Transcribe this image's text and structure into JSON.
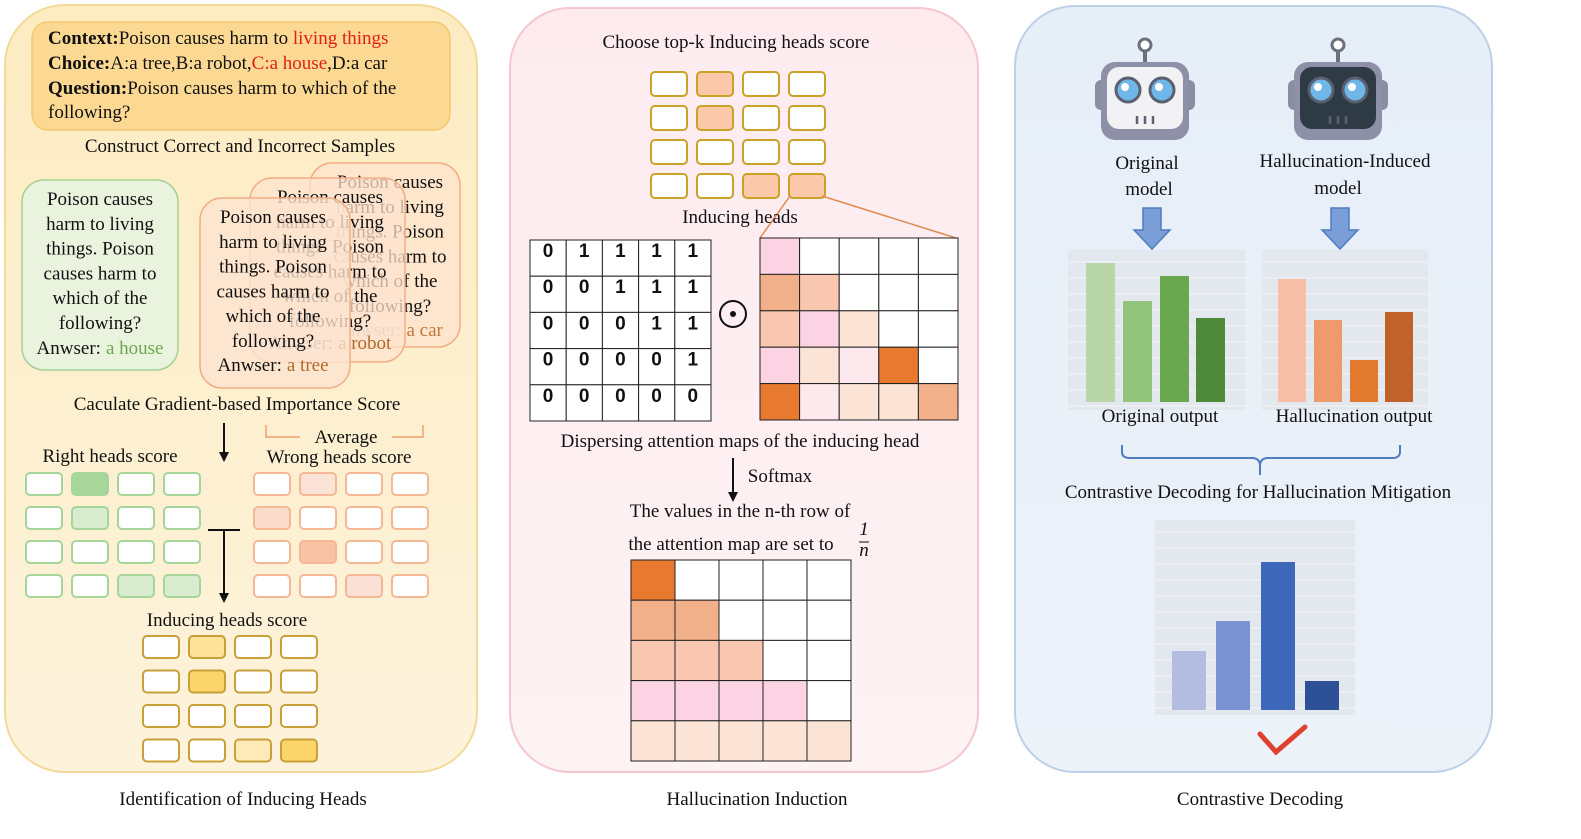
{
  "left": {
    "context_label": "Context:",
    "context_text": "Poison causes harm to ",
    "context_highlight": "living things",
    "choice_label": "Choice:",
    "choice_text": "A:a tree,B:a robot,",
    "choice_highlight": "C:a house",
    "choice_tail": ",D:a car",
    "question_label": "Question:",
    "question_lines": [
      "Poison causes harm to which of the",
      "following?"
    ],
    "construct": "Construct Correct and Incorrect Samples",
    "correct_sample": {
      "lines": [
        "Poison causes",
        "harm to living",
        "things. Poison",
        "causes harm to",
        "which of the",
        "following?"
      ],
      "answer_label": "Anwser:",
      "answer": "a house"
    },
    "incorrect_samples": [
      {
        "lines": [
          "Poison causes",
          "harm to living",
          "things. Poison",
          "causes harm to",
          "which of the",
          "following?"
        ],
        "answer_label": "Anwser:",
        "answer": "a tree"
      },
      {
        "lines": [
          "Poison causes",
          "harm to living",
          "things. Poison",
          "causes harm to",
          "which of the",
          "following?"
        ],
        "answer_label": "Anwser:",
        "answer": "a robot"
      },
      {
        "lines": [
          "Poison causes",
          "harm to living",
          "things. Poison",
          "causes harm to",
          "which of the",
          "following?"
        ],
        "answer_label": "Anwser:",
        "answer": "a car"
      }
    ],
    "gradient": "Caculate Gradient-based Importance Score",
    "average": "Average",
    "right_heads": "Right heads score",
    "wrong_heads": "Wrong heads score",
    "inducing_heads": "Inducing heads score",
    "caption": "Identification of Inducing Heads"
  },
  "middle": {
    "choose": "Choose top-k Inducing heads score",
    "inducing_heads": "Inducing heads",
    "mask": [
      [
        0,
        1,
        1,
        1,
        1
      ],
      [
        0,
        0,
        1,
        1,
        1
      ],
      [
        0,
        0,
        0,
        1,
        1
      ],
      [
        0,
        0,
        0,
        0,
        1
      ],
      [
        0,
        0,
        0,
        0,
        0
      ]
    ],
    "dispersing": "Dispersing attention maps of the inducing head",
    "softmax": "Softmax",
    "values_line1": "The values in the n-th row of",
    "values_line2": "the attention map are set to",
    "fraction_numerator": "1",
    "fraction_denominator": "n",
    "caption": "Hallucination Induction"
  },
  "right": {
    "original_model": [
      "Original",
      "model"
    ],
    "induced_model": [
      "Hallucination-Induced",
      "model"
    ],
    "original_output": "Original output",
    "hallucination_output": "Hallucination output",
    "contrastive": "Contrastive Decoding for Hallucination Mitigation",
    "caption": "Contrastive Decoding"
  }
}
